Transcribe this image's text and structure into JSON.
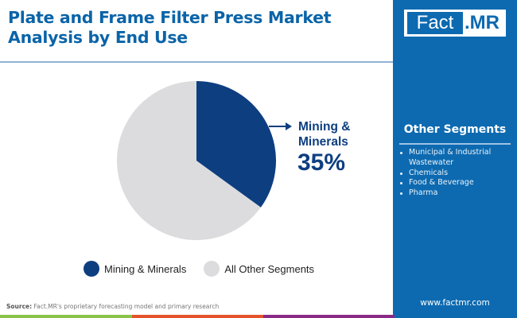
{
  "header": {
    "title": "Plate and Frame Filter Press Market Analysis by End Use"
  },
  "brand": {
    "logo_left": "Fact",
    "logo_right": ".MR",
    "website": "www.factmr.com"
  },
  "sidebar": {
    "title": "Other Segments",
    "items": [
      "Municipal & Industrial Wastewater",
      "Chemicals",
      "Food & Beverage",
      "Pharma"
    ]
  },
  "callout": {
    "label": "Mining & Minerals",
    "value": "35%"
  },
  "legend": [
    {
      "label": "Mining & Minerals",
      "color": "#0d3e80"
    },
    {
      "label": "All Other Segments",
      "color": "#dcdcdf"
    }
  ],
  "footer": {
    "source_label": "Source:",
    "source_text": "Fact.MR's proprietary forecasting model and primary research",
    "bar_colors": [
      "#8bc34a",
      "#e5532c",
      "#8a2a86",
      "#0d6ab0"
    ]
  },
  "colors": {
    "title": "#0a64a8",
    "accent": "#0d6ab0",
    "primary_slice": "#0d3e80",
    "other_slice": "#dcdcdf"
  },
  "chart_data": {
    "type": "pie",
    "title": "Plate and Frame Filter Press Market Analysis by End Use",
    "categories": [
      "Mining & Minerals",
      "All Other Segments"
    ],
    "values": [
      35,
      65
    ],
    "unit": "%",
    "colors": [
      "#0d3e80",
      "#dcdcdf"
    ],
    "start_angle": "12 o'clock, clockwise",
    "annotations": [
      {
        "target": "Mining & Minerals",
        "text": "Mining & Minerals 35%"
      }
    ],
    "legend_position": "bottom",
    "other_segments_list": [
      "Municipal & Industrial Wastewater",
      "Chemicals",
      "Food & Beverage",
      "Pharma"
    ]
  }
}
